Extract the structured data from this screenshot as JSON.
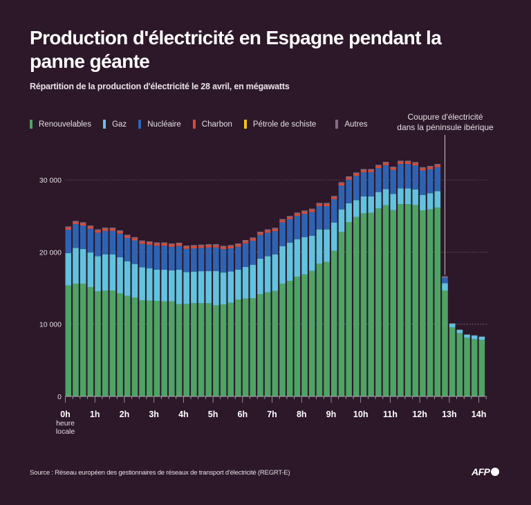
{
  "header": {
    "title": "Production d'électricité en Espagne pendant la panne géante",
    "subtitle": "Répartition de la production d'électricité le 28 avril, en mégawatts"
  },
  "legend": [
    {
      "label": "Renouvelables",
      "color": "#4ea365"
    },
    {
      "label": "Gaz",
      "color": "#62c3de"
    },
    {
      "label": "Nucléaire",
      "color": "#2e63b3"
    },
    {
      "label": "Charbon",
      "color": "#d34b39"
    },
    {
      "label": "Pétrole de schiste",
      "color": "#f5c21b"
    },
    {
      "label": "Autres",
      "color": "#866c80"
    }
  ],
  "annotation": {
    "text_line1": "Coupure d'électricité",
    "text_line2": "dans la péninsule ibérique",
    "at_time": "12h45"
  },
  "footer": {
    "source": "Source : Réseau européen des gestionnaires de réseaux de transport d'électricité (REGRT-E)",
    "logo": "AFP"
  },
  "chart_data": {
    "type": "bar",
    "stacked": true,
    "title": "Production d'électricité en Espagne pendant la panne géante",
    "subtitle": "Répartition de la production d'électricité le 28 avril, en mégawatts",
    "xlabel": "heure locale",
    "ylabel": "mégawatts",
    "ylim": [
      0,
      33000
    ],
    "yticks": [
      0,
      10000,
      20000,
      30000
    ],
    "ytick_labels": [
      "0",
      "10 000",
      "20 000",
      "30 000"
    ],
    "xtick_labels": [
      "0h",
      "1h",
      "2h",
      "3h",
      "4h",
      "5h",
      "6h",
      "7h",
      "8h",
      "9h",
      "10h",
      "11h",
      "12h",
      "13h",
      "14h"
    ],
    "xtick_sublabel": [
      "heure",
      "locale"
    ],
    "interval_minutes": 15,
    "grid": "dashed horizontal at 30 000",
    "legend_position": "top-left",
    "categories": [
      "0h00",
      "0h15",
      "0h30",
      "0h45",
      "1h00",
      "1h15",
      "1h30",
      "1h45",
      "2h00",
      "2h15",
      "2h30",
      "2h45",
      "3h00",
      "3h15",
      "3h30",
      "3h45",
      "4h00",
      "4h15",
      "4h30",
      "4h45",
      "5h00",
      "5h15",
      "5h30",
      "5h45",
      "6h00",
      "6h15",
      "6h30",
      "6h45",
      "7h00",
      "7h15",
      "7h30",
      "7h45",
      "8h00",
      "8h15",
      "8h30",
      "8h45",
      "9h00",
      "9h15",
      "9h30",
      "9h45",
      "10h00",
      "10h15",
      "10h30",
      "10h45",
      "11h00",
      "11h15",
      "11h30",
      "11h45",
      "12h00",
      "12h15",
      "12h30",
      "12h45",
      "13h00",
      "13h15",
      "13h30",
      "13h45",
      "14h00"
    ],
    "series": [
      {
        "name": "Renouvelables",
        "color": "#4ea365",
        "values": [
          15370,
          15630,
          15630,
          15150,
          14570,
          14670,
          14670,
          14290,
          13930,
          13680,
          13330,
          13260,
          13230,
          13160,
          13160,
          12780,
          12820,
          12910,
          12910,
          12910,
          12620,
          12750,
          12970,
          13420,
          13550,
          13610,
          14190,
          14410,
          14600,
          15630,
          16010,
          16590,
          16910,
          17390,
          18410,
          18640,
          20180,
          22820,
          24160,
          24860,
          25370,
          25440,
          26050,
          26500,
          25820,
          26650,
          26650,
          26500,
          25790,
          25920,
          26180,
          14670,
          9560,
          8760,
          8120,
          7930,
          7830
        ]
      },
      {
        "name": "Gaz",
        "color": "#62c3de",
        "values": [
          4480,
          4950,
          4790,
          4790,
          4860,
          5020,
          5020,
          4980,
          4800,
          4670,
          4570,
          4480,
          4340,
          4390,
          4290,
          4770,
          4410,
          4380,
          4440,
          4470,
          4760,
          4410,
          4350,
          4150,
          4380,
          4640,
          4890,
          5020,
          5090,
          5200,
          5300,
          5200,
          5170,
          4880,
          4730,
          4500,
          3920,
          3100,
          2590,
          2340,
          2340,
          2270,
          2270,
          2230,
          2240,
          2180,
          2180,
          2170,
          2140,
          2240,
          2270,
          1020,
          520,
          460,
          440,
          500,
          440
        ]
      },
      {
        "name": "Nucléaire",
        "color": "#2e63b3",
        "values": [
          3250,
          3290,
          3260,
          3290,
          3260,
          3250,
          3250,
          3290,
          3220,
          3270,
          3250,
          3290,
          3310,
          3330,
          3290,
          3290,
          3220,
          3230,
          3230,
          3260,
          3260,
          3260,
          3200,
          3170,
          3290,
          3320,
          3290,
          3260,
          3220,
          3290,
          3240,
          3230,
          3230,
          3290,
          3230,
          3230,
          3230,
          3320,
          3290,
          3380,
          3350,
          3350,
          3320,
          3320,
          3320,
          3380,
          3380,
          3350,
          3380,
          3320,
          3310,
          750,
          0,
          0,
          0,
          0,
          0
        ]
      },
      {
        "name": "Charbon",
        "color": "#d34b39",
        "values": [
          300,
          300,
          300,
          300,
          300,
          300,
          300,
          300,
          300,
          300,
          300,
          300,
          300,
          300,
          300,
          300,
          300,
          300,
          300,
          300,
          300,
          300,
          300,
          300,
          300,
          300,
          300,
          300,
          300,
          300,
          300,
          300,
          300,
          300,
          300,
          300,
          300,
          300,
          300,
          300,
          300,
          300,
          300,
          300,
          300,
          300,
          300,
          300,
          300,
          300,
          300,
          0,
          0,
          0,
          0,
          0,
          0
        ]
      },
      {
        "name": "Pétrole de schiste",
        "color": "#f5c21b",
        "values": [
          0,
          0,
          0,
          0,
          0,
          0,
          0,
          0,
          0,
          0,
          0,
          0,
          0,
          0,
          0,
          0,
          0,
          0,
          0,
          0,
          0,
          0,
          0,
          0,
          0,
          0,
          0,
          0,
          0,
          0,
          0,
          0,
          0,
          0,
          0,
          0,
          0,
          0,
          0,
          0,
          0,
          0,
          0,
          0,
          0,
          0,
          0,
          0,
          0,
          0,
          0,
          0,
          0,
          0,
          0,
          0,
          0
        ]
      },
      {
        "name": "Autres",
        "color": "#866c80",
        "values": [
          150,
          150,
          150,
          150,
          150,
          150,
          150,
          150,
          150,
          150,
          150,
          150,
          150,
          150,
          150,
          150,
          150,
          150,
          150,
          150,
          150,
          150,
          150,
          150,
          150,
          150,
          150,
          150,
          150,
          150,
          150,
          150,
          150,
          150,
          150,
          150,
          150,
          150,
          150,
          150,
          150,
          150,
          150,
          150,
          150,
          150,
          150,
          150,
          150,
          150,
          150,
          200,
          50,
          50,
          40,
          40,
          40
        ]
      }
    ]
  }
}
